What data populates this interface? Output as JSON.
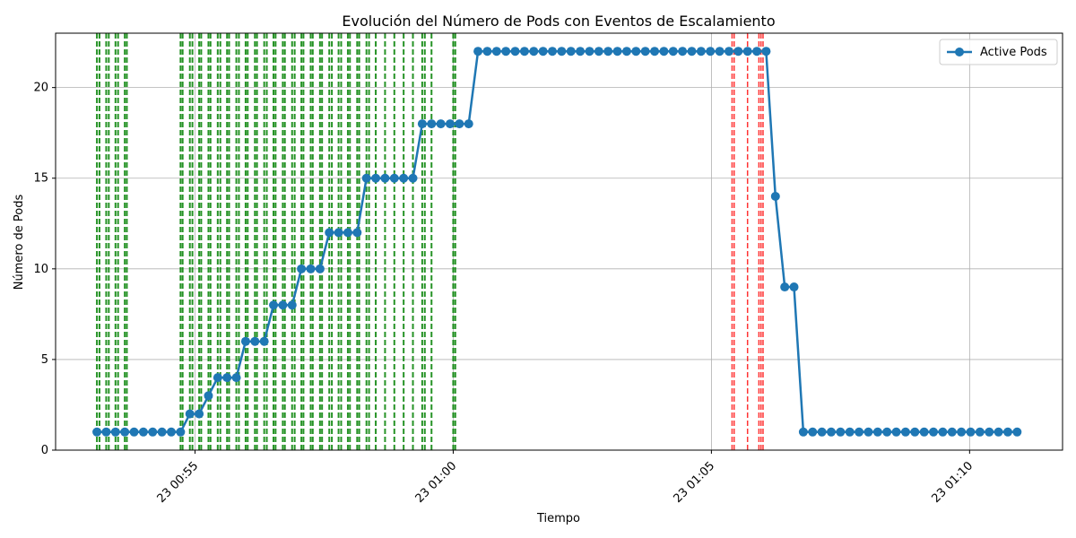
{
  "chart_data": {
    "type": "line",
    "title": "Evolución del Número de Pods con Eventos de Escalamiento",
    "xlabel": "Tiempo",
    "ylabel": "Número de Pods",
    "ylim": [
      0,
      23
    ],
    "xlim_minutes": [
      52.3,
      71.8
    ],
    "x_ticks": [
      {
        "minute": 55,
        "label": "23 00:55"
      },
      {
        "minute": 60,
        "label": "23 01:00"
      },
      {
        "minute": 65,
        "label": "23 01:05"
      },
      {
        "minute": 70,
        "label": "23 01:10"
      }
    ],
    "y_ticks": [
      0,
      5,
      10,
      15,
      20
    ],
    "grid": true,
    "legend": {
      "position": "top-right",
      "entries": [
        "Active Pods"
      ]
    },
    "colors": {
      "line": "#1f77b4",
      "scale_up": "#008000",
      "scale_down": "#ff0000",
      "grid": "#b0b0b0"
    },
    "series": [
      {
        "name": "Active Pods",
        "x": [
          53.1,
          53.28,
          53.46,
          53.64,
          53.82,
          54.0,
          54.18,
          54.36,
          54.54,
          54.72,
          54.9,
          55.08,
          55.26,
          55.44,
          55.62,
          55.8,
          55.98,
          56.16,
          56.34,
          56.52,
          56.7,
          56.88,
          57.06,
          57.24,
          57.42,
          57.6,
          57.78,
          57.96,
          58.14,
          58.32,
          58.5,
          58.68,
          58.86,
          59.04,
          59.22,
          59.4,
          59.58,
          59.76,
          59.94,
          60.12,
          60.3,
          60.48,
          60.66,
          60.84,
          61.02,
          61.2,
          61.38,
          61.56,
          61.74,
          61.92,
          62.1,
          62.28,
          62.46,
          62.64,
          62.82,
          63.0,
          63.18,
          63.36,
          63.54,
          63.72,
          63.9,
          64.08,
          64.26,
          64.44,
          64.62,
          64.8,
          64.98,
          65.16,
          65.34,
          65.52,
          65.7,
          65.88,
          66.06,
          66.24,
          66.42,
          66.6,
          66.78,
          66.96,
          67.14,
          67.32,
          67.5,
          67.68,
          67.86,
          68.04,
          68.22,
          68.4,
          68.58,
          68.76,
          68.94,
          69.12,
          69.3,
          69.48,
          69.66,
          69.84,
          70.02,
          70.2,
          70.38,
          70.56,
          70.74,
          70.92
        ],
        "values": [
          1,
          1,
          1,
          1,
          1,
          1,
          1,
          1,
          1,
          1,
          2,
          2,
          3,
          4,
          4,
          4,
          6,
          6,
          6,
          8,
          8,
          8,
          10,
          10,
          10,
          12,
          12,
          12,
          12,
          15,
          15,
          15,
          15,
          15,
          15,
          18,
          18,
          18,
          18,
          18,
          18,
          22,
          22,
          22,
          22,
          22,
          22,
          22,
          22,
          22,
          22,
          22,
          22,
          22,
          22,
          22,
          22,
          22,
          22,
          22,
          22,
          22,
          22,
          22,
          22,
          22,
          22,
          22,
          22,
          22,
          22,
          22,
          22,
          14,
          9,
          9,
          1,
          1,
          1,
          1,
          1,
          1,
          1,
          1,
          1,
          1,
          1,
          1,
          1,
          1,
          1,
          1,
          1,
          1,
          1,
          1,
          1,
          1,
          1,
          1
        ]
      }
    ],
    "scale_up_events_minutes": [
      53.1,
      53.15,
      53.28,
      53.33,
      53.46,
      53.51,
      53.64,
      53.68,
      54.72,
      54.76,
      54.9,
      54.95,
      55.08,
      55.12,
      55.26,
      55.3,
      55.44,
      55.49,
      55.62,
      55.66,
      55.8,
      55.85,
      55.98,
      56.02,
      56.16,
      56.2,
      56.34,
      56.39,
      56.52,
      56.56,
      56.7,
      56.74,
      56.88,
      56.93,
      57.06,
      57.1,
      57.24,
      57.28,
      57.42,
      57.46,
      57.6,
      57.65,
      57.78,
      57.83,
      57.96,
      58.0,
      58.14,
      58.18,
      58.32,
      58.37,
      58.5,
      58.68,
      58.86,
      59.04,
      59.22,
      59.4,
      59.45,
      59.58,
      60.0,
      60.04
    ],
    "scale_down_events_minutes": [
      65.4,
      65.44,
      65.7,
      65.92,
      65.96,
      66.0
    ]
  }
}
